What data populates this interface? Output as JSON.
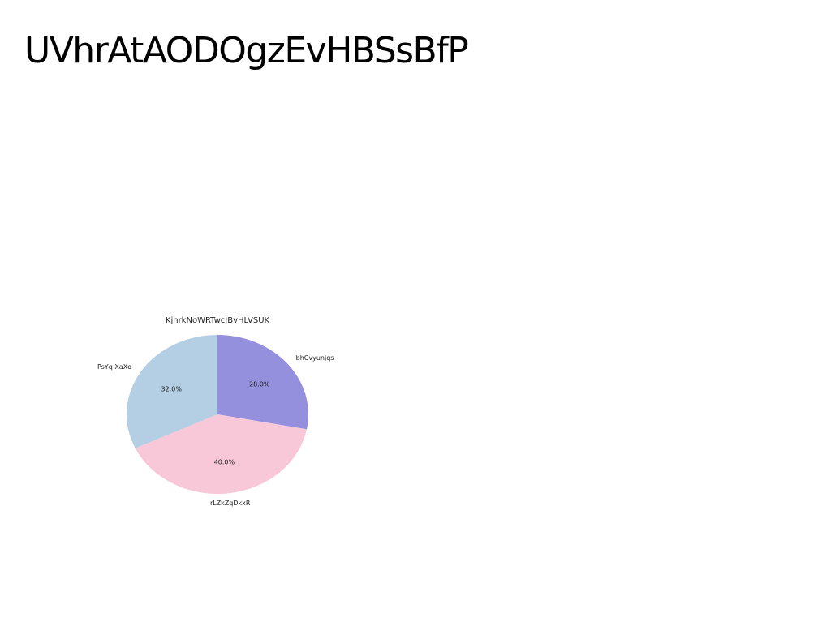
{
  "slide": {
    "title": "UVhrAtAODOgzEvHBSsBfP"
  },
  "chart_data": {
    "type": "pie",
    "title": "KjnrkNoWRTwcJBvHLVSUK",
    "start_angle_deg": 90,
    "direction": "clockwise",
    "slices": [
      {
        "label": "bhCvyunjqs",
        "value": 28.0,
        "pct_label": "28.0%",
        "color": "#9590dd"
      },
      {
        "label": "rLZkZqDkxR",
        "value": 40.0,
        "pct_label": "40.0%",
        "color": "#f8c8d8"
      },
      {
        "label": "PsYq XaXo",
        "value": 32.0,
        "pct_label": "32.0%",
        "color": "#b4cfe3"
      }
    ]
  }
}
